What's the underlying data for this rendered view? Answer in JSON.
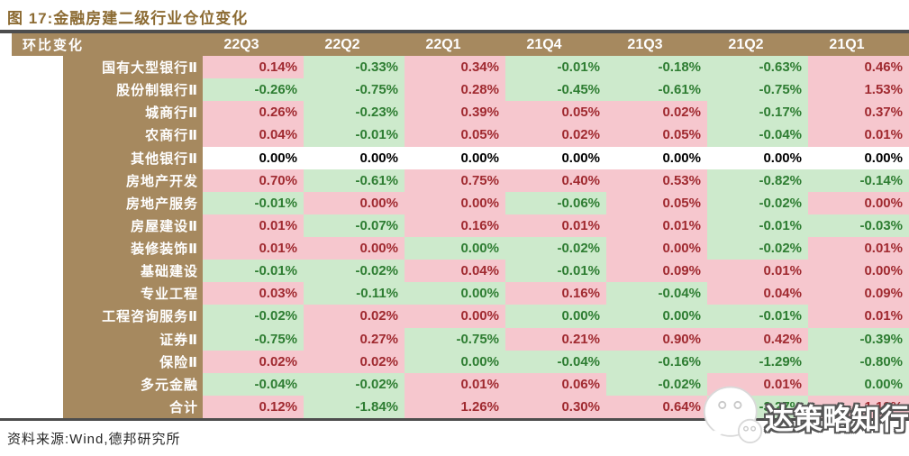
{
  "figure": {
    "title": "图 17:金融房建二级行业仓位变化",
    "source": "资料来源:Wind,德邦研究所"
  },
  "table": {
    "header_label": "环比变化",
    "columns": [
      "22Q3",
      "22Q2",
      "22Q1",
      "21Q4",
      "21Q3",
      "21Q2",
      "21Q1"
    ],
    "rows": [
      {
        "label": "国有大型银行Ⅱ",
        "cells": [
          {
            "v": "0.14%",
            "t": "p"
          },
          {
            "v": "-0.33%",
            "t": "g"
          },
          {
            "v": "0.34%",
            "t": "p"
          },
          {
            "v": "-0.01%",
            "t": "g"
          },
          {
            "v": "-0.18%",
            "t": "g"
          },
          {
            "v": "-0.63%",
            "t": "g"
          },
          {
            "v": "0.46%",
            "t": "p"
          }
        ]
      },
      {
        "label": "股份制银行Ⅱ",
        "cells": [
          {
            "v": "-0.26%",
            "t": "g"
          },
          {
            "v": "-0.75%",
            "t": "g"
          },
          {
            "v": "0.28%",
            "t": "p"
          },
          {
            "v": "-0.45%",
            "t": "g"
          },
          {
            "v": "-0.61%",
            "t": "g"
          },
          {
            "v": "-0.75%",
            "t": "g"
          },
          {
            "v": "1.53%",
            "t": "p"
          }
        ]
      },
      {
        "label": "城商行Ⅱ",
        "cells": [
          {
            "v": "0.26%",
            "t": "p"
          },
          {
            "v": "-0.23%",
            "t": "g"
          },
          {
            "v": "0.39%",
            "t": "p"
          },
          {
            "v": "0.05%",
            "t": "p"
          },
          {
            "v": "0.02%",
            "t": "p"
          },
          {
            "v": "-0.17%",
            "t": "g"
          },
          {
            "v": "0.37%",
            "t": "p"
          }
        ]
      },
      {
        "label": "农商行Ⅱ",
        "cells": [
          {
            "v": "0.04%",
            "t": "p"
          },
          {
            "v": "-0.01%",
            "t": "g"
          },
          {
            "v": "0.05%",
            "t": "p"
          },
          {
            "v": "0.02%",
            "t": "p"
          },
          {
            "v": "0.05%",
            "t": "p"
          },
          {
            "v": "-0.04%",
            "t": "g"
          },
          {
            "v": "0.01%",
            "t": "p"
          }
        ]
      },
      {
        "label": "其他银行Ⅱ",
        "cells": [
          {
            "v": "0.00%",
            "t": "w"
          },
          {
            "v": "0.00%",
            "t": "w"
          },
          {
            "v": "0.00%",
            "t": "w"
          },
          {
            "v": "0.00%",
            "t": "w"
          },
          {
            "v": "0.00%",
            "t": "w"
          },
          {
            "v": "0.00%",
            "t": "w"
          },
          {
            "v": "0.00%",
            "t": "w"
          }
        ]
      },
      {
        "label": "房地产开发",
        "cells": [
          {
            "v": "0.70%",
            "t": "p"
          },
          {
            "v": "-0.61%",
            "t": "g"
          },
          {
            "v": "0.75%",
            "t": "p"
          },
          {
            "v": "0.40%",
            "t": "p"
          },
          {
            "v": "0.53%",
            "t": "p"
          },
          {
            "v": "-0.82%",
            "t": "g"
          },
          {
            "v": "-0.14%",
            "t": "g"
          }
        ]
      },
      {
        "label": "房地产服务",
        "cells": [
          {
            "v": "-0.01%",
            "t": "g"
          },
          {
            "v": "0.00%",
            "t": "p"
          },
          {
            "v": "0.00%",
            "t": "p"
          },
          {
            "v": "-0.06%",
            "t": "g"
          },
          {
            "v": "0.05%",
            "t": "p"
          },
          {
            "v": "-0.02%",
            "t": "g"
          },
          {
            "v": "0.00%",
            "t": "p"
          }
        ]
      },
      {
        "label": "房屋建设Ⅱ",
        "cells": [
          {
            "v": "0.01%",
            "t": "p"
          },
          {
            "v": "-0.07%",
            "t": "g"
          },
          {
            "v": "0.16%",
            "t": "p"
          },
          {
            "v": "0.01%",
            "t": "p"
          },
          {
            "v": "0.01%",
            "t": "p"
          },
          {
            "v": "-0.01%",
            "t": "g"
          },
          {
            "v": "-0.03%",
            "t": "g"
          }
        ]
      },
      {
        "label": "装修装饰Ⅱ",
        "cells": [
          {
            "v": "0.01%",
            "t": "p"
          },
          {
            "v": "0.00%",
            "t": "p"
          },
          {
            "v": "0.00%",
            "t": "g"
          },
          {
            "v": "-0.02%",
            "t": "g"
          },
          {
            "v": "0.00%",
            "t": "p"
          },
          {
            "v": "-0.02%",
            "t": "g"
          },
          {
            "v": "0.01%",
            "t": "p"
          }
        ]
      },
      {
        "label": "基础建设",
        "cells": [
          {
            "v": "-0.01%",
            "t": "g"
          },
          {
            "v": "-0.02%",
            "t": "g"
          },
          {
            "v": "0.04%",
            "t": "p"
          },
          {
            "v": "-0.01%",
            "t": "g"
          },
          {
            "v": "0.09%",
            "t": "p"
          },
          {
            "v": "0.01%",
            "t": "p"
          },
          {
            "v": "0.00%",
            "t": "p"
          }
        ]
      },
      {
        "label": "专业工程",
        "cells": [
          {
            "v": "0.03%",
            "t": "p"
          },
          {
            "v": "-0.11%",
            "t": "g"
          },
          {
            "v": "0.00%",
            "t": "g"
          },
          {
            "v": "0.16%",
            "t": "p"
          },
          {
            "v": "-0.04%",
            "t": "g"
          },
          {
            "v": "0.04%",
            "t": "p"
          },
          {
            "v": "0.09%",
            "t": "p"
          }
        ]
      },
      {
        "label": "工程咨询服务Ⅱ",
        "cells": [
          {
            "v": "-0.02%",
            "t": "g"
          },
          {
            "v": "0.02%",
            "t": "p"
          },
          {
            "v": "0.00%",
            "t": "p"
          },
          {
            "v": "0.00%",
            "t": "g"
          },
          {
            "v": "0.00%",
            "t": "g"
          },
          {
            "v": "-0.01%",
            "t": "g"
          },
          {
            "v": "0.01%",
            "t": "p"
          }
        ]
      },
      {
        "label": "证券Ⅱ",
        "cells": [
          {
            "v": "-0.75%",
            "t": "g"
          },
          {
            "v": "0.27%",
            "t": "p"
          },
          {
            "v": "-0.75%",
            "t": "g"
          },
          {
            "v": "0.21%",
            "t": "p"
          },
          {
            "v": "0.90%",
            "t": "p"
          },
          {
            "v": "0.42%",
            "t": "p"
          },
          {
            "v": "-0.39%",
            "t": "g"
          }
        ]
      },
      {
        "label": "保险Ⅱ",
        "cells": [
          {
            "v": "0.02%",
            "t": "p"
          },
          {
            "v": "0.02%",
            "t": "p"
          },
          {
            "v": "0.00%",
            "t": "g"
          },
          {
            "v": "-0.04%",
            "t": "g"
          },
          {
            "v": "-0.16%",
            "t": "g"
          },
          {
            "v": "-1.29%",
            "t": "g"
          },
          {
            "v": "-0.80%",
            "t": "g"
          }
        ]
      },
      {
        "label": "多元金融",
        "cells": [
          {
            "v": "-0.04%",
            "t": "g"
          },
          {
            "v": "-0.02%",
            "t": "g"
          },
          {
            "v": "0.01%",
            "t": "p"
          },
          {
            "v": "0.06%",
            "t": "p"
          },
          {
            "v": "-0.02%",
            "t": "g"
          },
          {
            "v": "0.01%",
            "t": "p"
          },
          {
            "v": "0.00%",
            "t": "g"
          }
        ]
      },
      {
        "label": "合计",
        "cells": [
          {
            "v": "0.12%",
            "t": "p"
          },
          {
            "v": "-1.84%",
            "t": "g"
          },
          {
            "v": "1.26%",
            "t": "p"
          },
          {
            "v": "0.30%",
            "t": "p"
          },
          {
            "v": "0.64%",
            "t": "p"
          },
          {
            "v": "-3.27%",
            "t": "g"
          },
          {
            "v": "1.12%",
            "t": "p"
          }
        ]
      }
    ]
  },
  "watermark": {
    "text": "达策略知行",
    "icon": "wechat-logo-icon"
  },
  "colors": {
    "title": "#8C6B33",
    "header_bg": "#A6895F",
    "rule": "#4D4D4D",
    "positive_bg": "#F6C7CE",
    "positive_text": "#A02A30",
    "negative_bg": "#CDEACC",
    "negative_text": "#2E7D32",
    "zero_bg": "#FFFFFF",
    "zero_text": "#000000"
  },
  "chart_data": {
    "type": "table",
    "title": "图 17:金融房建二级行业仓位变化",
    "columns": [
      "22Q3",
      "22Q2",
      "22Q1",
      "21Q4",
      "21Q3",
      "21Q2",
      "21Q1"
    ],
    "row_header": "环比变化",
    "unit": "%",
    "color_coding": {
      "pink": "positive change",
      "green": "negative change",
      "white": "zero"
    },
    "rows": [
      {
        "label": "国有大型银行Ⅱ",
        "values": [
          0.14,
          -0.33,
          0.34,
          -0.01,
          -0.18,
          -0.63,
          0.46
        ]
      },
      {
        "label": "股份制银行Ⅱ",
        "values": [
          -0.26,
          -0.75,
          0.28,
          -0.45,
          -0.61,
          -0.75,
          1.53
        ]
      },
      {
        "label": "城商行Ⅱ",
        "values": [
          0.26,
          -0.23,
          0.39,
          0.05,
          0.02,
          -0.17,
          0.37
        ]
      },
      {
        "label": "农商行Ⅱ",
        "values": [
          0.04,
          -0.01,
          0.05,
          0.02,
          0.05,
          -0.04,
          0.01
        ]
      },
      {
        "label": "其他银行Ⅱ",
        "values": [
          0.0,
          0.0,
          0.0,
          0.0,
          0.0,
          0.0,
          0.0
        ]
      },
      {
        "label": "房地产开发",
        "values": [
          0.7,
          -0.61,
          0.75,
          0.4,
          0.53,
          -0.82,
          -0.14
        ]
      },
      {
        "label": "房地产服务",
        "values": [
          -0.01,
          0.0,
          0.0,
          -0.06,
          0.05,
          -0.02,
          0.0
        ]
      },
      {
        "label": "房屋建设Ⅱ",
        "values": [
          0.01,
          -0.07,
          0.16,
          0.01,
          0.01,
          -0.01,
          -0.03
        ]
      },
      {
        "label": "装修装饰Ⅱ",
        "values": [
          0.01,
          0.0,
          0.0,
          -0.02,
          0.0,
          -0.02,
          0.01
        ]
      },
      {
        "label": "基础建设",
        "values": [
          -0.01,
          -0.02,
          0.04,
          -0.01,
          0.09,
          0.01,
          0.0
        ]
      },
      {
        "label": "专业工程",
        "values": [
          0.03,
          -0.11,
          0.0,
          0.16,
          -0.04,
          0.04,
          0.09
        ]
      },
      {
        "label": "工程咨询服务Ⅱ",
        "values": [
          -0.02,
          0.02,
          0.0,
          0.0,
          0.0,
          -0.01,
          0.01
        ]
      },
      {
        "label": "证券Ⅱ",
        "values": [
          -0.75,
          0.27,
          -0.75,
          0.21,
          0.9,
          0.42,
          -0.39
        ]
      },
      {
        "label": "保险Ⅱ",
        "values": [
          0.02,
          0.02,
          0.0,
          -0.04,
          -0.16,
          -1.29,
          -0.8
        ]
      },
      {
        "label": "多元金融",
        "values": [
          -0.04,
          -0.02,
          0.01,
          0.06,
          -0.02,
          0.01,
          0.0
        ]
      },
      {
        "label": "合计",
        "values": [
          0.12,
          -1.84,
          1.26,
          0.3,
          0.64,
          -3.27,
          1.12
        ]
      }
    ]
  }
}
